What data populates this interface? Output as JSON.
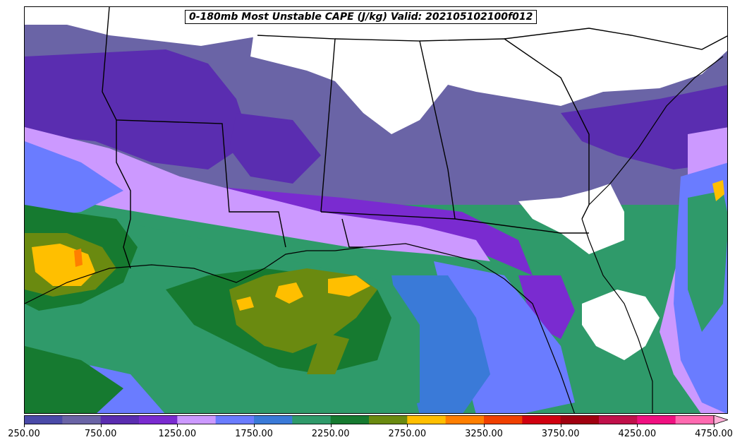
{
  "title": "0-180mb Most Unstable CAPE (J/kg) Valid: 202105102100f012",
  "colorbar": {
    "min": 250,
    "max": 5000,
    "step": 250,
    "extend": "max",
    "colors": [
      "#4a4aa8",
      "#6a64a6",
      "#5a2db0",
      "#7a2bd0",
      "#cc99ff",
      "#6a7cff",
      "#3a7ad8",
      "#2f9a6a",
      "#167a30",
      "#6a8a10",
      "#ffbf00",
      "#ff7f00",
      "#f04000",
      "#d00010",
      "#a00010",
      "#c0104a",
      "#f01080",
      "#ff6ab0",
      "#ffb0d8"
    ],
    "tick_labels": [
      "250.00",
      "750.00",
      "1250.00",
      "1750.00",
      "2250.00",
      "2750.00",
      "3250.00",
      "3750.00",
      "4250.00",
      "4750.00"
    ]
  },
  "map": {
    "region": "Southeastern United States and Gulf of Mexico",
    "field_colors": {
      "c250": "#4a4aa8",
      "c500": "#6a64a6",
      "c750": "#5a2db0",
      "c1000": "#7a2bd0",
      "c1250": "#cc99ff",
      "c1500": "#6a7cff",
      "c1750": "#3a7ad8",
      "c2000": "#2f9a6a",
      "c2250": "#167a30",
      "c2500": "#6a8a10",
      "c2750": "#ffbf00",
      "c3000": "#ff7f00",
      "none": "#ffffff"
    }
  }
}
